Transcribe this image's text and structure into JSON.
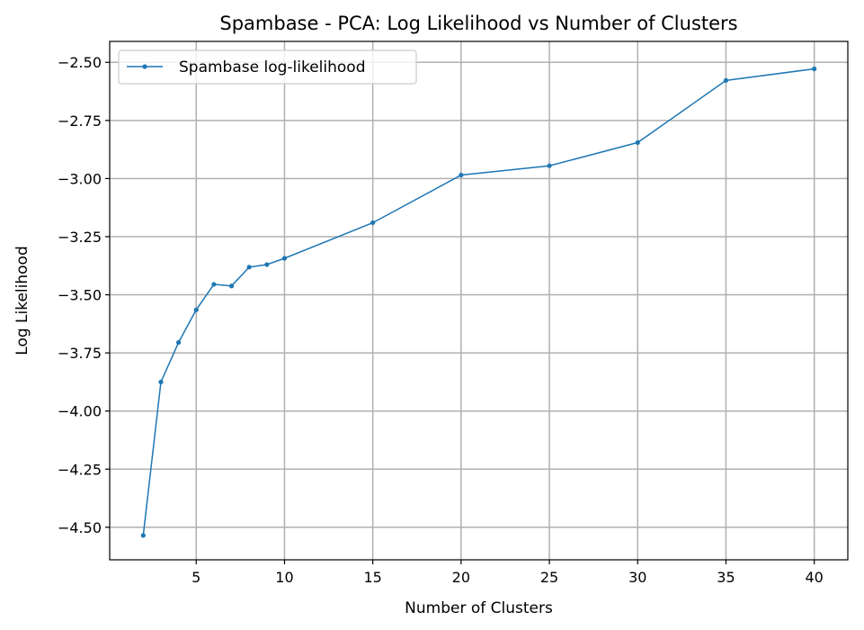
{
  "chart_data": {
    "type": "line",
    "title": "Spambase - PCA: Log Likelihood vs Number of Clusters",
    "xlabel": "Number of Clusters",
    "ylabel": "Log Likelihood",
    "xlim": [
      0.1,
      41.9
    ],
    "ylim": [
      -4.64,
      -2.41
    ],
    "xticks": [
      5,
      10,
      15,
      20,
      25,
      30,
      35,
      40
    ],
    "xtick_labels": [
      "5",
      "10",
      "15",
      "20",
      "25",
      "30",
      "35",
      "40"
    ],
    "yticks": [
      -2.5,
      -2.75,
      -3.0,
      -3.25,
      -3.5,
      -3.75,
      -4.0,
      -4.25,
      -4.5
    ],
    "ytick_labels": [
      "−2.50",
      "−2.75",
      "−3.00",
      "−3.25",
      "−3.50",
      "−3.75",
      "−4.00",
      "−4.25",
      "−4.50"
    ],
    "grid": true,
    "legend_position": "top-left",
    "series": [
      {
        "name": "Spambase log-likelihood",
        "color": "#1f77b4",
        "x": [
          2,
          3,
          4,
          5,
          6,
          7,
          8,
          9,
          10,
          15,
          20,
          25,
          30,
          35,
          40
        ],
        "y": [
          -4.535,
          -3.875,
          -3.705,
          -3.565,
          -3.455,
          -3.462,
          -3.381,
          -3.37,
          -3.343,
          -3.19,
          -2.985,
          -2.945,
          -2.845,
          -2.578,
          -2.528
        ]
      }
    ]
  }
}
